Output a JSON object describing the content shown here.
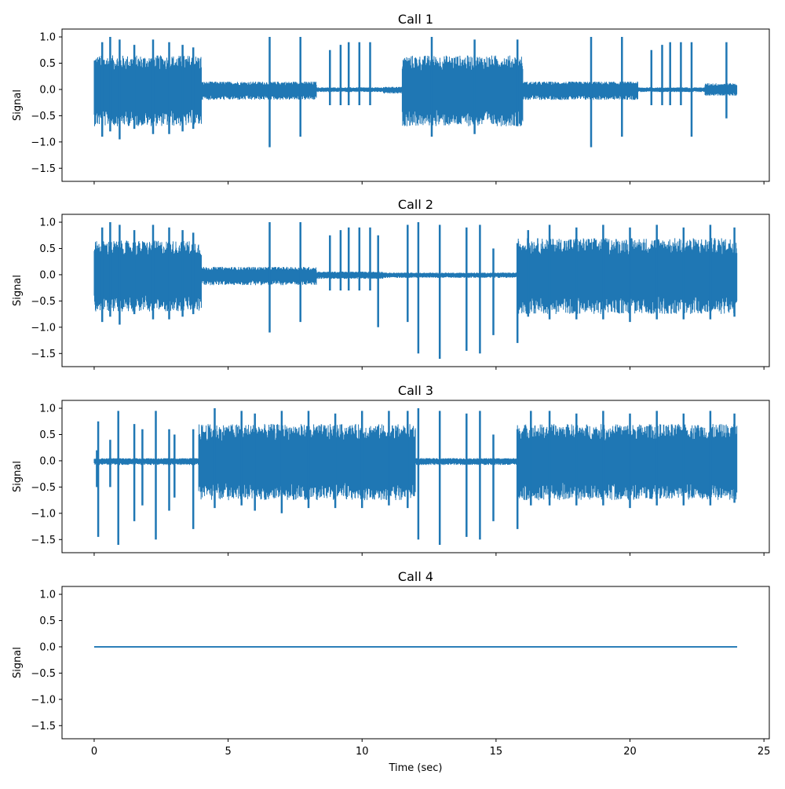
{
  "chart_data": {
    "type": "line",
    "layout": "stacked-subplots-shared-x",
    "xlabel": "Time (sec)",
    "x_ticks": [
      0,
      5,
      10,
      15,
      20,
      25
    ],
    "xlim": [
      -1.2,
      25.2
    ],
    "y_ticks": [
      -1.5,
      -1.0,
      -0.5,
      0.0,
      0.5,
      1.0
    ],
    "ylim": [
      -1.75,
      1.15
    ],
    "grid": false,
    "line_color": "#1f77b4",
    "time_range": [
      0,
      24
    ],
    "panels": [
      {
        "title": "Call 1",
        "ylabel": "Signal",
        "segments": [
          {
            "start": 0.0,
            "end": 4.0,
            "type": "dense",
            "amp": 0.65,
            "neg": 0.7
          },
          {
            "start": 4.0,
            "end": 8.3,
            "type": "dense",
            "amp": 0.15,
            "neg": 0.2
          },
          {
            "start": 8.3,
            "end": 10.8,
            "type": "dense",
            "amp": 0.04,
            "neg": 0.05
          },
          {
            "start": 10.8,
            "end": 11.5,
            "type": "dense",
            "amp": 0.05,
            "neg": 0.08
          },
          {
            "start": 11.5,
            "end": 16.0,
            "type": "dense",
            "amp": 0.65,
            "neg": 0.7
          },
          {
            "start": 16.0,
            "end": 20.3,
            "type": "dense",
            "amp": 0.15,
            "neg": 0.2
          },
          {
            "start": 20.3,
            "end": 22.8,
            "type": "dense",
            "amp": 0.04,
            "neg": 0.05
          },
          {
            "start": 22.8,
            "end": 24.0,
            "type": "dense",
            "amp": 0.12,
            "neg": 0.12
          }
        ],
        "spikes": [
          {
            "t": 0.3,
            "up": 0.9,
            "down": -0.9
          },
          {
            "t": 0.6,
            "up": 1.0,
            "down": -0.8
          },
          {
            "t": 0.95,
            "up": 0.95,
            "down": -0.95
          },
          {
            "t": 1.5,
            "up": 0.85,
            "down": -0.75
          },
          {
            "t": 2.2,
            "up": 0.95,
            "down": -0.85
          },
          {
            "t": 2.8,
            "up": 0.9,
            "down": -0.85
          },
          {
            "t": 3.3,
            "up": 0.85,
            "down": -0.8
          },
          {
            "t": 3.7,
            "up": 0.8,
            "down": -0.75
          },
          {
            "t": 6.55,
            "up": 1.0,
            "down": -1.1
          },
          {
            "t": 7.7,
            "up": 1.0,
            "down": -0.9
          },
          {
            "t": 8.8,
            "up": 0.75,
            "down": -0.3
          },
          {
            "t": 9.2,
            "up": 0.85,
            "down": -0.3
          },
          {
            "t": 9.5,
            "up": 0.9,
            "down": -0.3
          },
          {
            "t": 9.9,
            "up": 0.9,
            "down": -0.3
          },
          {
            "t": 10.3,
            "up": 0.9,
            "down": -0.3
          },
          {
            "t": 12.6,
            "up": 1.0,
            "down": -0.9
          },
          {
            "t": 14.2,
            "up": 0.95,
            "down": -0.85
          },
          {
            "t": 15.8,
            "up": 0.95,
            "down": -0.7
          },
          {
            "t": 18.55,
            "up": 1.0,
            "down": -1.1
          },
          {
            "t": 19.7,
            "up": 1.0,
            "down": -0.9
          },
          {
            "t": 20.8,
            "up": 0.75,
            "down": -0.3
          },
          {
            "t": 21.2,
            "up": 0.85,
            "down": -0.3
          },
          {
            "t": 21.5,
            "up": 0.9,
            "down": -0.3
          },
          {
            "t": 21.9,
            "up": 0.9,
            "down": -0.3
          },
          {
            "t": 22.3,
            "up": 0.9,
            "down": -0.9
          },
          {
            "t": 23.6,
            "up": 0.9,
            "down": -0.55
          }
        ]
      },
      {
        "title": "Call 2",
        "ylabel": "Signal",
        "segments": [
          {
            "start": 0.0,
            "end": 4.0,
            "type": "dense",
            "amp": 0.65,
            "neg": 0.7
          },
          {
            "start": 4.0,
            "end": 8.3,
            "type": "dense",
            "amp": 0.15,
            "neg": 0.2
          },
          {
            "start": 8.3,
            "end": 10.8,
            "type": "dense",
            "amp": 0.06,
            "neg": 0.08
          },
          {
            "start": 10.8,
            "end": 15.8,
            "type": "dense",
            "amp": 0.04,
            "neg": 0.06
          },
          {
            "start": 15.8,
            "end": 24.0,
            "type": "dense",
            "amp": 0.7,
            "neg": 0.75
          }
        ],
        "spikes": [
          {
            "t": 0.3,
            "up": 0.9,
            "down": -0.9
          },
          {
            "t": 0.6,
            "up": 1.0,
            "down": -0.8
          },
          {
            "t": 0.95,
            "up": 0.95,
            "down": -0.95
          },
          {
            "t": 1.5,
            "up": 0.85,
            "down": -0.75
          },
          {
            "t": 2.2,
            "up": 0.95,
            "down": -0.85
          },
          {
            "t": 2.8,
            "up": 0.9,
            "down": -0.85
          },
          {
            "t": 3.3,
            "up": 0.85,
            "down": -0.8
          },
          {
            "t": 3.7,
            "up": 0.8,
            "down": -0.75
          },
          {
            "t": 6.55,
            "up": 1.0,
            "down": -1.1
          },
          {
            "t": 7.7,
            "up": 1.0,
            "down": -0.9
          },
          {
            "t": 8.8,
            "up": 0.75,
            "down": -0.3
          },
          {
            "t": 9.2,
            "up": 0.85,
            "down": -0.3
          },
          {
            "t": 9.5,
            "up": 0.9,
            "down": -0.3
          },
          {
            "t": 9.9,
            "up": 0.9,
            "down": -0.3
          },
          {
            "t": 10.3,
            "up": 0.9,
            "down": -0.3
          },
          {
            "t": 10.6,
            "up": 0.75,
            "down": -1.0
          },
          {
            "t": 11.7,
            "up": 0.95,
            "down": -0.9
          },
          {
            "t": 12.1,
            "up": 1.0,
            "down": -1.5
          },
          {
            "t": 12.9,
            "up": 0.95,
            "down": -1.6
          },
          {
            "t": 13.9,
            "up": 0.9,
            "down": -1.45
          },
          {
            "t": 14.4,
            "up": 0.95,
            "down": -1.5
          },
          {
            "t": 14.9,
            "up": 0.5,
            "down": -1.15
          },
          {
            "t": 15.8,
            "up": 0.6,
            "down": -1.3
          },
          {
            "t": 16.2,
            "up": 0.85,
            "down": -0.8
          },
          {
            "t": 17.0,
            "up": 0.95,
            "down": -0.85
          },
          {
            "t": 18.0,
            "up": 0.9,
            "down": -0.85
          },
          {
            "t": 19.0,
            "up": 0.95,
            "down": -0.85
          },
          {
            "t": 20.0,
            "up": 0.9,
            "down": -0.9
          },
          {
            "t": 21.0,
            "up": 0.95,
            "down": -0.85
          },
          {
            "t": 22.0,
            "up": 0.9,
            "down": -0.85
          },
          {
            "t": 23.0,
            "up": 0.95,
            "down": -0.85
          },
          {
            "t": 23.9,
            "up": 0.9,
            "down": -0.8
          }
        ]
      },
      {
        "title": "Call 3",
        "ylabel": "Signal",
        "segments": [
          {
            "start": 0.0,
            "end": 3.9,
            "type": "dense",
            "amp": 0.05,
            "neg": 0.08
          },
          {
            "start": 3.9,
            "end": 12.0,
            "type": "dense",
            "amp": 0.7,
            "neg": 0.75
          },
          {
            "start": 12.0,
            "end": 15.8,
            "type": "dense",
            "amp": 0.05,
            "neg": 0.08
          },
          {
            "start": 15.8,
            "end": 24.0,
            "type": "dense",
            "amp": 0.7,
            "neg": 0.75
          }
        ],
        "spikes": [
          {
            "t": 0.1,
            "up": 0.2,
            "down": -0.5
          },
          {
            "t": 0.15,
            "up": 0.75,
            "down": -1.45
          },
          {
            "t": 0.6,
            "up": 0.4,
            "down": -0.5
          },
          {
            "t": 0.9,
            "up": 0.95,
            "down": -1.6
          },
          {
            "t": 1.5,
            "up": 0.7,
            "down": -1.15
          },
          {
            "t": 1.8,
            "up": 0.6,
            "down": -0.85
          },
          {
            "t": 2.3,
            "up": 0.95,
            "down": -1.5
          },
          {
            "t": 2.8,
            "up": 0.6,
            "down": -0.95
          },
          {
            "t": 3.0,
            "up": 0.5,
            "down": -0.7
          },
          {
            "t": 3.7,
            "up": 0.6,
            "down": -1.3
          },
          {
            "t": 4.5,
            "up": 1.0,
            "down": -0.9
          },
          {
            "t": 5.5,
            "up": 0.95,
            "down": -0.85
          },
          {
            "t": 6.0,
            "up": 0.9,
            "down": -0.95
          },
          {
            "t": 7.0,
            "up": 0.95,
            "down": -1.0
          },
          {
            "t": 8.0,
            "up": 0.95,
            "down": -0.9
          },
          {
            "t": 9.0,
            "up": 0.9,
            "down": -0.9
          },
          {
            "t": 10.0,
            "up": 0.95,
            "down": -0.9
          },
          {
            "t": 11.0,
            "up": 0.95,
            "down": -0.85
          },
          {
            "t": 11.7,
            "up": 0.95,
            "down": -0.9
          },
          {
            "t": 12.1,
            "up": 1.0,
            "down": -1.5
          },
          {
            "t": 12.9,
            "up": 0.95,
            "down": -1.6
          },
          {
            "t": 13.9,
            "up": 0.9,
            "down": -1.45
          },
          {
            "t": 14.4,
            "up": 0.95,
            "down": -1.5
          },
          {
            "t": 14.9,
            "up": 0.5,
            "down": -1.15
          },
          {
            "t": 15.8,
            "up": 0.6,
            "down": -1.3
          },
          {
            "t": 16.3,
            "up": 0.95,
            "down": -0.85
          },
          {
            "t": 17.0,
            "up": 0.95,
            "down": -0.85
          },
          {
            "t": 18.0,
            "up": 0.9,
            "down": -0.85
          },
          {
            "t": 19.0,
            "up": 0.95,
            "down": -0.85
          },
          {
            "t": 20.0,
            "up": 0.9,
            "down": -0.9
          },
          {
            "t": 21.0,
            "up": 0.95,
            "down": -0.85
          },
          {
            "t": 22.0,
            "up": 0.9,
            "down": -0.85
          },
          {
            "t": 23.0,
            "up": 0.95,
            "down": -0.85
          },
          {
            "t": 23.9,
            "up": 0.9,
            "down": -0.8
          }
        ]
      },
      {
        "title": "Call 4",
        "ylabel": "Signal",
        "segments": [
          {
            "start": 0.0,
            "end": 24.0,
            "type": "flat",
            "value": 0.0
          }
        ],
        "spikes": []
      }
    ]
  }
}
